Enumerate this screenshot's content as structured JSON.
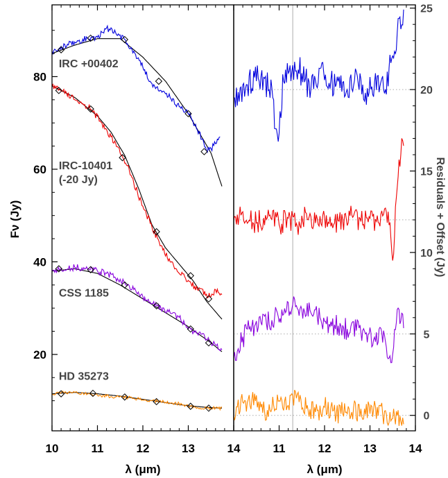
{
  "chart_data": [
    {
      "type": "line",
      "panel": "left",
      "xlabel": "λ (μm)",
      "ylabel": "Fν (Jy)",
      "xlim": [
        10,
        14
      ],
      "ylim": [
        3.5,
        95.5
      ],
      "xticks": [
        "10",
        "11",
        "12",
        "13",
        "14"
      ],
      "yticks": [
        "20",
        "40",
        "60",
        "80"
      ],
      "series": [
        {
          "name": "IRC +00402",
          "color": "#0000dd",
          "x": [
            10,
            10.2,
            10.5,
            10.85,
            11,
            11.2,
            11.4,
            11.6,
            11.8,
            12,
            12.2,
            12.4,
            12.6,
            12.8,
            13,
            13.1,
            13.2,
            13.3,
            13.4,
            13.5,
            13.6,
            13.7
          ],
          "values": [
            85.5,
            86.5,
            87.5,
            88.5,
            88.5,
            90.5,
            89.5,
            88,
            85.5,
            82,
            78.5,
            77,
            75.5,
            73.5,
            72,
            70.5,
            68.5,
            66.5,
            64,
            64.5,
            65.5,
            67
          ],
          "fit_x": [
            10,
            10.5,
            11,
            11.5,
            12,
            12.5,
            13,
            13.5,
            13.75
          ],
          "fit_values": [
            85,
            86.8,
            88.2,
            88.2,
            84.2,
            79,
            72,
            63.5,
            56
          ],
          "markers_x": [
            10.2,
            10.85,
            11.6,
            12.35,
            13.0,
            13.35
          ],
          "markers_y": [
            85.8,
            88.3,
            88.0,
            79.0,
            72.0,
            63.8
          ]
        },
        {
          "name": "IRC-10401",
          "color": "#ee0000",
          "x": [
            10,
            10.2,
            10.5,
            10.85,
            11.1,
            11.3,
            11.5,
            11.65,
            11.8,
            12,
            12.2,
            12.4,
            12.6,
            12.8,
            13,
            13.2,
            13.4,
            13.5,
            13.6,
            13.75
          ],
          "values": [
            78,
            77,
            75,
            73,
            70,
            67,
            63.5,
            61,
            57,
            52,
            47.5,
            43.5,
            40,
            37.5,
            36,
            34,
            33,
            32.5,
            34,
            32.5
          ],
          "fit_x": [
            10,
            10.5,
            11,
            11.3,
            11.6,
            11.9,
            12.2,
            12.5,
            12.8,
            13.1,
            13.4,
            13.75
          ],
          "fit_values": [
            78,
            75.5,
            71.5,
            68,
            63,
            56,
            48,
            43,
            39.5,
            36,
            31.5,
            27.5
          ],
          "markers_x": [
            10.15,
            10.85,
            11.55,
            12.3,
            13.05,
            13.45
          ],
          "markers_y": [
            77.0,
            73.0,
            62.5,
            46.5,
            37.0,
            32.0
          ]
        },
        {
          "name": "CSS 1185",
          "color": "#8800dd",
          "x": [
            10,
            10.2,
            10.5,
            10.8,
            11,
            11.2,
            11.4,
            11.6,
            11.8,
            12,
            12.2,
            12.4,
            12.6,
            12.8,
            13,
            13.2,
            13.35,
            13.5,
            13.6,
            13.75
          ],
          "values": [
            38,
            38.5,
            38.8,
            38.5,
            38,
            37.5,
            36.5,
            35.5,
            34,
            32.5,
            31,
            30,
            29,
            28,
            25.5,
            24.5,
            24,
            22.5,
            22,
            21
          ],
          "fit_x": [
            10,
            10.5,
            11,
            11.5,
            12,
            12.5,
            13,
            13.5,
            13.75
          ],
          "fit_values": [
            38,
            38.5,
            37.5,
            35,
            32,
            29,
            26,
            22.5,
            20.5
          ],
          "markers_x": [
            10.15,
            10.85,
            11.6,
            12.3,
            13.05,
            13.45
          ],
          "markers_y": [
            38.5,
            38.3,
            35.0,
            30.5,
            25.5,
            22.5
          ]
        },
        {
          "name": "HD 35273",
          "color": "#ff8800",
          "x": [
            10,
            10.2,
            10.5,
            10.8,
            11,
            11.2,
            11.4,
            11.6,
            11.8,
            12,
            12.2,
            12.4,
            12.6,
            12.8,
            13,
            13.2,
            13.4,
            13.6,
            13.75
          ],
          "values": [
            11.5,
            11.8,
            11.8,
            11.5,
            11.2,
            11,
            10.8,
            10.8,
            10.5,
            10.2,
            10,
            9.8,
            9.5,
            9.4,
            8.8,
            8.5,
            8.5,
            8.4,
            8.3
          ],
          "fit_x": [
            10,
            10.5,
            11,
            11.5,
            12,
            12.5,
            13,
            13.5,
            13.75
          ],
          "fit_values": [
            11.5,
            11.8,
            11.5,
            11,
            10.3,
            9.6,
            8.9,
            8.5,
            8.4
          ],
          "markers_x": [
            10.2,
            10.9,
            11.6,
            12.3,
            13.05,
            13.45
          ],
          "markers_y": [
            11.5,
            11.6,
            10.8,
            9.8,
            8.8,
            8.4
          ]
        }
      ],
      "annotations": [
        {
          "text": "IRC +00402",
          "x": 10.15,
          "y": 82
        },
        {
          "text": "IRC-10401",
          "x": 10.15,
          "y": 60
        },
        {
          "text": "(-20 Jy)",
          "x": 10.15,
          "y": 57
        },
        {
          "text": "CSS 1185",
          "x": 10.15,
          "y": 32.5
        },
        {
          "text": "HD 35273",
          "x": 10.15,
          "y": 14.5
        }
      ],
      "legend": "none",
      "grid": false
    },
    {
      "type": "line",
      "panel": "right",
      "xlabel": "λ (μm)",
      "ylabel": "Residuals + Offset (Jy)",
      "xlim": [
        10,
        14
      ],
      "ylim": [
        -0.95,
        25.2
      ],
      "xticks": [
        "11",
        "12",
        "13",
        "14"
      ],
      "yticks": [
        "0",
        "5",
        "10",
        "15",
        "20",
        "25"
      ],
      "vline_x": 11.3,
      "offset_lines": [
        20,
        12,
        5,
        0
      ],
      "series": [
        {
          "name": "IRC +00402",
          "color": "#0000dd",
          "x": [
            10,
            10.3,
            10.6,
            10.85,
            10.95,
            11.1,
            11.3,
            11.5,
            11.7,
            11.9,
            12.1,
            12.3,
            12.5,
            12.7,
            12.9,
            13.1,
            13.3,
            13.45,
            13.6,
            13.75
          ],
          "values": [
            19.5,
            20.3,
            20.8,
            19.8,
            17,
            20.5,
            21.5,
            21,
            20,
            21.3,
            20.4,
            20.5,
            20,
            21.1,
            19.8,
            20.4,
            20,
            21.5,
            23.5,
            25.2
          ],
          "zero": 20
        },
        {
          "name": "IRC-10401",
          "color": "#ee0000",
          "x": [
            10,
            10.2,
            10.5,
            10.8,
            11,
            11.2,
            11.4,
            11.6,
            11.8,
            12,
            12.2,
            12.4,
            12.6,
            12.8,
            13,
            13.2,
            13.4,
            13.5,
            13.6,
            13.7,
            13.75
          ],
          "values": [
            12,
            12.5,
            11.8,
            12.3,
            11.7,
            12.1,
            11.6,
            12.4,
            11.8,
            12.2,
            11.7,
            12,
            12.3,
            11.9,
            12.1,
            11.8,
            12.5,
            9.5,
            14,
            17,
            16.5
          ],
          "zero": 12
        },
        {
          "name": "CSS 1185",
          "color": "#8800dd",
          "x": [
            10,
            10.3,
            10.6,
            10.9,
            11.1,
            11.3,
            11.5,
            11.7,
            11.9,
            12.1,
            12.3,
            12.5,
            12.7,
            12.9,
            13.1,
            13.3,
            13.45,
            13.6,
            13.75
          ],
          "values": [
            3.5,
            5.3,
            5.7,
            6,
            6.2,
            6.8,
            6.5,
            6.3,
            6,
            5.6,
            5.5,
            5.3,
            5.2,
            5,
            4.8,
            5.2,
            3,
            6.5,
            5.8
          ],
          "zero": 5
        },
        {
          "name": "HD 35273",
          "color": "#ff8800",
          "x": [
            10,
            10.2,
            10.4,
            10.6,
            10.8,
            11,
            11.2,
            11.4,
            11.6,
            11.8,
            12,
            12.2,
            12.4,
            12.6,
            12.8,
            13,
            13.2,
            13.4,
            13.5,
            13.6,
            13.75
          ],
          "values": [
            0,
            0.8,
            1,
            0.5,
            0.3,
            0.9,
            0.6,
            1.3,
            0.4,
            0.2,
            0.5,
            0.3,
            0.1,
            0.2,
            0.4,
            0.1,
            0.6,
            -0.6,
            -0.2,
            0,
            -0.3
          ],
          "zero": 0
        }
      ],
      "legend": "none",
      "grid": false
    }
  ]
}
